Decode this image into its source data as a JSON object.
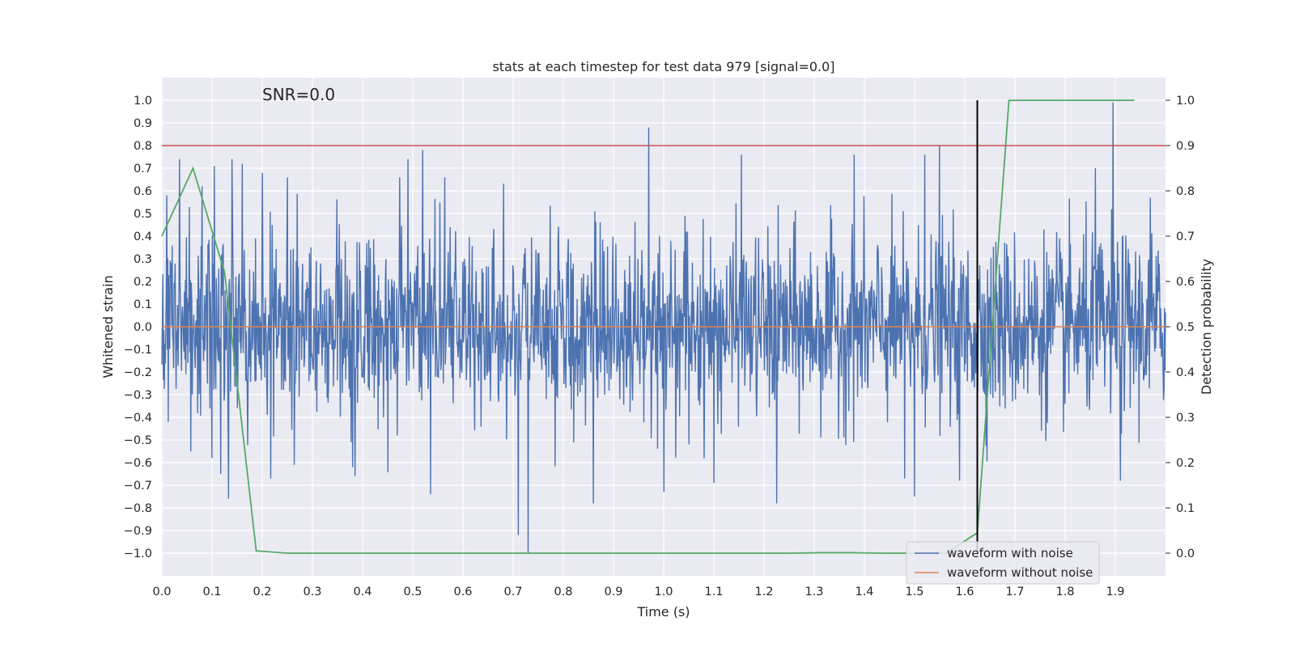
{
  "chart_data": {
    "type": "line",
    "title": "stats at each timestep for test data 979 [signal=0.0]",
    "annotation": "SNR=0.0",
    "xlabel": "Time (s)",
    "ylabel": "Whitened strain",
    "y2label": "Detection probability",
    "xlim": [
      0.0,
      2.0
    ],
    "ylim": [
      -1.1,
      1.1
    ],
    "y2lim": [
      -0.05,
      1.05
    ],
    "x_ticks": [
      "0.0",
      "0.1",
      "0.2",
      "0.3",
      "0.4",
      "0.5",
      "0.6",
      "0.7",
      "0.8",
      "0.9",
      "1.0",
      "1.1",
      "1.2",
      "1.3",
      "1.4",
      "1.5",
      "1.6",
      "1.7",
      "1.8",
      "1.9"
    ],
    "y_ticks": [
      "1.0",
      "0.9",
      "0.8",
      "0.7",
      "0.6",
      "0.5",
      "0.4",
      "0.3",
      "0.2",
      "0.1",
      "0.0",
      "−0.1",
      "−0.2",
      "−0.3",
      "−0.4",
      "−0.5",
      "−0.6",
      "−0.7",
      "−0.8",
      "−0.9",
      "−1.0"
    ],
    "y2_ticks": [
      "1.0",
      "0.9",
      "0.8",
      "0.7",
      "0.6",
      "0.5",
      "0.4",
      "0.3",
      "0.2",
      "0.1",
      "0.0"
    ],
    "grid": true,
    "legend_position": "lower-right",
    "series": [
      {
        "name": "waveform with noise",
        "color": "#4c72b0",
        "axis": "left",
        "noise": {
          "x_range": [
            0.0,
            2.0
          ],
          "points": 2048,
          "amplitude": 0.36,
          "peaks": [
            {
              "x": 0.01,
              "y": 0.58
            },
            {
              "x": 0.035,
              "y": 0.74
            },
            {
              "x": 0.058,
              "y": -0.55
            },
            {
              "x": 0.08,
              "y": 0.62
            },
            {
              "x": 0.1,
              "y": -0.58
            },
            {
              "x": 0.105,
              "y": 0.71
            },
            {
              "x": 0.117,
              "y": -0.65
            },
            {
              "x": 0.133,
              "y": -0.76
            },
            {
              "x": 0.14,
              "y": 0.74
            },
            {
              "x": 0.16,
              "y": 0.72
            },
            {
              "x": 0.2,
              "y": 0.68
            },
            {
              "x": 0.217,
              "y": -0.67
            },
            {
              "x": 0.25,
              "y": 0.66
            },
            {
              "x": 0.38,
              "y": -0.62
            },
            {
              "x": 0.49,
              "y": 0.74
            },
            {
              "x": 0.52,
              "y": 0.78
            },
            {
              "x": 0.535,
              "y": -0.74
            },
            {
              "x": 0.71,
              "y": -0.92
            },
            {
              "x": 0.73,
              "y": -1.0
            },
            {
              "x": 0.86,
              "y": -0.78
            },
            {
              "x": 0.97,
              "y": 0.88
            },
            {
              "x": 1.0,
              "y": -0.73
            },
            {
              "x": 1.1,
              "y": -0.69
            },
            {
              "x": 1.155,
              "y": 0.76
            },
            {
              "x": 1.225,
              "y": -0.78
            },
            {
              "x": 1.38,
              "y": 0.76
            },
            {
              "x": 1.48,
              "y": -0.67
            },
            {
              "x": 1.5,
              "y": -0.75
            },
            {
              "x": 1.52,
              "y": 0.76
            },
            {
              "x": 1.55,
              "y": 0.8
            },
            {
              "x": 1.59,
              "y": -0.68
            },
            {
              "x": 1.86,
              "y": 0.7
            },
            {
              "x": 1.895,
              "y": 0.99
            },
            {
              "x": 1.91,
              "y": -0.68
            },
            {
              "x": 1.97,
              "y": 0.57
            }
          ]
        }
      },
      {
        "name": "waveform without noise",
        "color": "#dd8452",
        "axis": "left",
        "x": [
          0.0,
          2.0
        ],
        "y": [
          0.0,
          0.0
        ]
      },
      {
        "color": "#55a868",
        "axis": "right",
        "x": [
          0.0,
          0.062,
          0.125,
          0.188,
          0.25,
          0.312,
          0.375,
          0.438,
          0.5,
          0.562,
          0.625,
          0.688,
          0.75,
          0.812,
          0.875,
          0.938,
          1.0,
          1.062,
          1.125,
          1.188,
          1.25,
          1.312,
          1.375,
          1.438,
          1.5,
          1.562,
          1.625,
          1.688,
          1.75,
          1.812,
          1.875,
          1.938
        ],
        "y": [
          0.7,
          0.85,
          0.62,
          0.005,
          0.0,
          0.0,
          0.0,
          0.0,
          0.0,
          0.0,
          0.0,
          0.0,
          0.0,
          0.0,
          0.0,
          0.0,
          0.0,
          0.0,
          0.0,
          0.0,
          0.0,
          0.001,
          0.001,
          0.0,
          0.0,
          0.0,
          0.045,
          1.0,
          1.0,
          1.0,
          1.0,
          1.0
        ]
      }
    ],
    "hlines": [
      {
        "axis": "right",
        "y": 0.9,
        "color": "#c44e52"
      }
    ],
    "vlines": [
      {
        "x": 1.625,
        "ymin": 0.0,
        "ymax": 1.0,
        "axis": "right",
        "color": "#000000"
      }
    ]
  }
}
